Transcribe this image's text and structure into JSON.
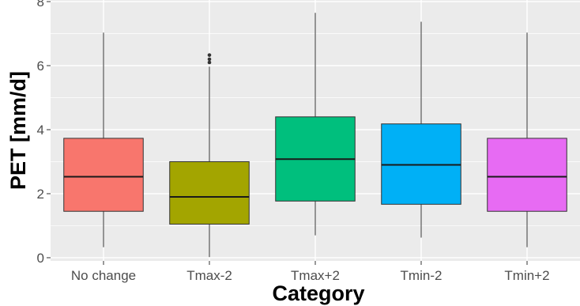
{
  "chart_data": {
    "type": "boxplot",
    "xlabel": "Category",
    "ylabel": "PET [mm/d]",
    "ylim": [
      -0.1,
      8.05
    ],
    "yticks": [
      0,
      2,
      4,
      6,
      8
    ],
    "grid": true,
    "legend": "none",
    "panel_bg": "#ebebeb",
    "grid_color": "#ffffff",
    "categories": [
      "No change",
      "Tmax-2",
      "Tmax+2",
      "Tmin-2",
      "Tmin+2"
    ],
    "boxes": [
      {
        "category": "No change",
        "color": "#f8766d",
        "whisker_low": 0.33,
        "q1": 1.45,
        "median": 2.53,
        "q3": 3.73,
        "whisker_high": 7.03,
        "outliers": []
      },
      {
        "category": "Tmax-2",
        "color": "#a3a500",
        "whisker_low": 0.02,
        "q1": 1.05,
        "median": 1.9,
        "q3": 3.0,
        "whisker_high": 5.97,
        "outliers": [
          6.1,
          6.2,
          6.33
        ]
      },
      {
        "category": "Tmax+2",
        "color": "#00bf7d",
        "whisker_low": 0.7,
        "q1": 1.77,
        "median": 3.08,
        "q3": 4.4,
        "whisker_high": 7.65,
        "outliers": []
      },
      {
        "category": "Tmin-2",
        "color": "#00b0f6",
        "whisker_low": 0.63,
        "q1": 1.67,
        "median": 2.9,
        "q3": 4.18,
        "whisker_high": 7.37,
        "outliers": []
      },
      {
        "category": "Tmin+2",
        "color": "#e76bf3",
        "whisker_low": 0.33,
        "q1": 1.45,
        "median": 2.53,
        "q3": 3.73,
        "whisker_high": 7.03,
        "outliers": []
      }
    ]
  }
}
